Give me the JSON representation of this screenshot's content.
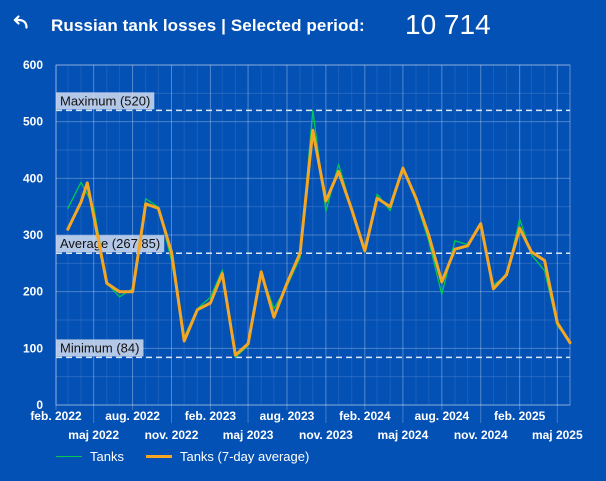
{
  "header": {
    "title": "Russian tank losses | Selected period:",
    "total": "10 714",
    "back_icon": "undo-arrow-icon"
  },
  "colors": {
    "background": "#0451b5",
    "tanks": "#00c853",
    "tanks_avg": "#f5a623",
    "reference_line": "#dbe6f5"
  },
  "chart_data": {
    "type": "line",
    "title": "",
    "xlabel": "",
    "ylabel": "",
    "ylim": [
      0,
      600
    ],
    "yticks": [
      0,
      100,
      200,
      300,
      400,
      500,
      600
    ],
    "xlim": [
      "2022-02-01",
      "2025-05-31"
    ],
    "grid": true,
    "legend_position": "bottom-left",
    "x_ticks_upper": [
      {
        "date": "2022-02-01",
        "label": "feb. 2022"
      },
      {
        "date": "2022-08-01",
        "label": "aug. 2022"
      },
      {
        "date": "2023-02-01",
        "label": "feb. 2023"
      },
      {
        "date": "2023-08-01",
        "label": "aug. 2023"
      },
      {
        "date": "2024-02-01",
        "label": "feb. 2024"
      },
      {
        "date": "2024-08-01",
        "label": "aug. 2024"
      },
      {
        "date": "2025-02-01",
        "label": "feb. 2025"
      }
    ],
    "x_ticks_lower": [
      {
        "date": "2022-05-01",
        "label": "maj 2022"
      },
      {
        "date": "2022-11-01",
        "label": "nov. 2022"
      },
      {
        "date": "2023-05-01",
        "label": "maj 2023"
      },
      {
        "date": "2023-11-01",
        "label": "nov. 2023"
      },
      {
        "date": "2024-05-01",
        "label": "maj 2024"
      },
      {
        "date": "2024-11-01",
        "label": "nov. 2024"
      },
      {
        "date": "2025-05-01",
        "label": "maj 2025"
      }
    ],
    "reference_lines": [
      {
        "label": "Maximum (520)",
        "value": 520
      },
      {
        "label": "Average (267,85)",
        "value": 267.85
      },
      {
        "label": "Minimum (84)",
        "value": 84
      }
    ],
    "series": [
      {
        "name": "Tanks",
        "color": "#00c853",
        "points": [
          [
            "2022-03-01",
            347
          ],
          [
            "2022-04-01",
            393
          ],
          [
            "2022-05-01",
            350
          ],
          [
            "2022-06-01",
            215
          ],
          [
            "2022-07-01",
            191
          ],
          [
            "2022-08-01",
            205
          ],
          [
            "2022-09-01",
            364
          ],
          [
            "2022-10-01",
            349
          ],
          [
            "2022-11-01",
            255
          ],
          [
            "2022-12-01",
            120
          ],
          [
            "2023-01-01",
            170
          ],
          [
            "2023-02-01",
            190
          ],
          [
            "2023-03-01",
            238
          ],
          [
            "2023-04-01",
            84
          ],
          [
            "2023-05-01",
            105
          ],
          [
            "2023-06-01",
            233
          ],
          [
            "2023-07-01",
            170
          ],
          [
            "2023-08-01",
            210
          ],
          [
            "2023-09-01",
            260
          ],
          [
            "2023-10-01",
            520
          ],
          [
            "2023-11-01",
            342
          ],
          [
            "2023-12-01",
            425
          ],
          [
            "2024-01-01",
            345
          ],
          [
            "2024-02-01",
            270
          ],
          [
            "2024-03-01",
            372
          ],
          [
            "2024-04-01",
            343
          ],
          [
            "2024-05-01",
            418
          ],
          [
            "2024-06-01",
            360
          ],
          [
            "2024-07-01",
            290
          ],
          [
            "2024-08-01",
            195
          ],
          [
            "2024-09-01",
            290
          ],
          [
            "2024-10-01",
            283
          ],
          [
            "2024-11-01",
            320
          ],
          [
            "2024-12-01",
            212
          ],
          [
            "2025-01-01",
            228
          ],
          [
            "2025-02-01",
            328
          ],
          [
            "2025-03-01",
            265
          ],
          [
            "2025-04-01",
            237
          ],
          [
            "2025-05-01",
            140
          ],
          [
            "2025-05-31",
            112
          ]
        ]
      },
      {
        "name": "Tanks (7-day average)",
        "color": "#f5a623",
        "points": [
          [
            "2022-03-01",
            310
          ],
          [
            "2022-04-01",
            358
          ],
          [
            "2022-04-16",
            392
          ],
          [
            "2022-06-01",
            215
          ],
          [
            "2022-07-01",
            200
          ],
          [
            "2022-08-01",
            200
          ],
          [
            "2022-09-01",
            355
          ],
          [
            "2022-10-01",
            347
          ],
          [
            "2022-11-01",
            270
          ],
          [
            "2022-12-01",
            113
          ],
          [
            "2023-01-01",
            168
          ],
          [
            "2023-02-01",
            180
          ],
          [
            "2023-03-01",
            232
          ],
          [
            "2023-04-01",
            88
          ],
          [
            "2023-05-01",
            108
          ],
          [
            "2023-06-01",
            235
          ],
          [
            "2023-07-01",
            155
          ],
          [
            "2023-08-01",
            215
          ],
          [
            "2023-09-01",
            268
          ],
          [
            "2023-10-01",
            485
          ],
          [
            "2023-11-01",
            360
          ],
          [
            "2023-12-01",
            412
          ],
          [
            "2024-01-01",
            345
          ],
          [
            "2024-02-01",
            272
          ],
          [
            "2024-03-01",
            365
          ],
          [
            "2024-04-01",
            350
          ],
          [
            "2024-05-01",
            418
          ],
          [
            "2024-06-01",
            365
          ],
          [
            "2024-07-01",
            300
          ],
          [
            "2024-08-01",
            217
          ],
          [
            "2024-09-01",
            275
          ],
          [
            "2024-10-01",
            281
          ],
          [
            "2024-11-01",
            320
          ],
          [
            "2024-12-01",
            205
          ],
          [
            "2025-01-01",
            230
          ],
          [
            "2025-02-01",
            312
          ],
          [
            "2025-03-01",
            270
          ],
          [
            "2025-04-01",
            255
          ],
          [
            "2025-05-01",
            145
          ],
          [
            "2025-05-31",
            110
          ]
        ]
      }
    ]
  }
}
